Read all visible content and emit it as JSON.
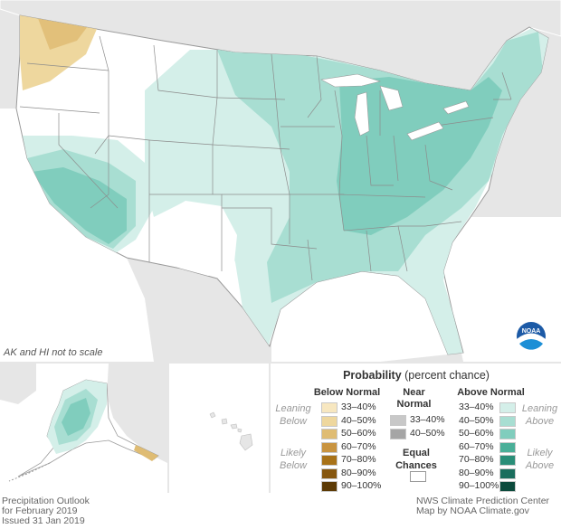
{
  "map": {
    "note": "AK and HI not to scale",
    "logo_text": "NOAA"
  },
  "legend": {
    "title_bold": "Probability",
    "title_rest": " (percent chance)",
    "below": {
      "header": "Below Normal",
      "side_top_1": "Leaning",
      "side_top_2": "Below",
      "side_bot_1": "Likely",
      "side_bot_2": "Below",
      "ranges": [
        "33–40%",
        "40–50%",
        "50–60%",
        "60–70%",
        "70–80%",
        "80–90%",
        "90–100%"
      ],
      "colors": [
        "#f7e7c0",
        "#eed79e",
        "#dfbc73",
        "#c99440",
        "#a87218",
        "#86570f",
        "#5c3a05"
      ]
    },
    "near": {
      "header_1": "Near",
      "header_2": "Normal",
      "ranges": [
        "33–40%",
        "40–50%"
      ],
      "colors": [
        "#c8c8c8",
        "#a5a5a5"
      ]
    },
    "equal": {
      "label_1": "Equal",
      "label_2": "Chances",
      "color": "#ffffff"
    },
    "above": {
      "header": "Above Normal",
      "side_top_1": "Leaning",
      "side_top_2": "Above",
      "side_bot_1": "Likely",
      "side_bot_2": "Above",
      "ranges": [
        "33–40%",
        "40–50%",
        "50–60%",
        "60–70%",
        "70–80%",
        "80–90%",
        "90–100%"
      ],
      "colors": [
        "#d4efe9",
        "#a8ded2",
        "#80cdbd",
        "#4aaf98",
        "#2a8e78",
        "#1a6e5d",
        "#0c4a3c"
      ]
    }
  },
  "footer": {
    "left_1": "Precipitation Outlook",
    "left_2": "for February 2019",
    "left_3": "Issued 31 Jan 2019",
    "right_1": "NWS Climate Prediction Center",
    "right_2": "Map by NOAA Climate.gov"
  }
}
